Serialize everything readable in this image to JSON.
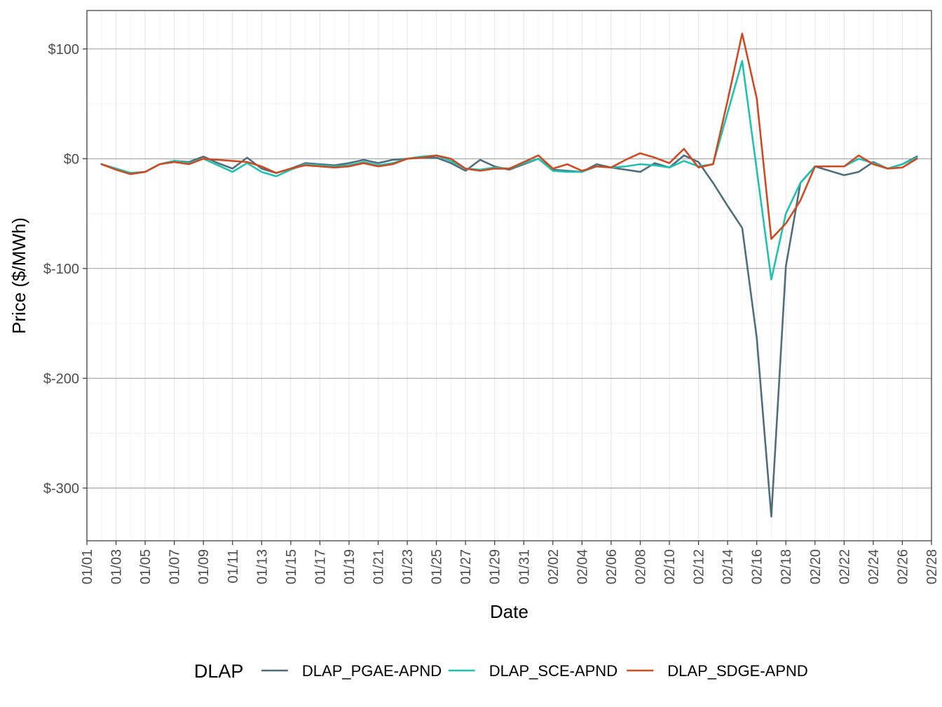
{
  "chart_data": {
    "type": "line",
    "xlabel": "Date",
    "ylabel": "Price ($/MWh)",
    "x_range": [
      "01/01",
      "02/28"
    ],
    "ylim": [
      -348,
      135
    ],
    "grid": true,
    "legend_position": "bottom",
    "legend_title": "DLAP",
    "x_tick_labels": [
      "01/01",
      "01/03",
      "01/05",
      "01/07",
      "01/09",
      "01/11",
      "01/13",
      "01/15",
      "01/17",
      "01/19",
      "01/21",
      "01/23",
      "01/25",
      "01/27",
      "01/29",
      "01/31",
      "02/02",
      "02/04",
      "02/06",
      "02/08",
      "02/10",
      "02/12",
      "02/14",
      "02/16",
      "02/18",
      "02/20",
      "02/22",
      "02/24",
      "02/26",
      "02/28"
    ],
    "y_ticks": [
      100,
      0,
      -100,
      -200,
      -300
    ],
    "y_tick_labels": [
      "$100",
      "$0",
      "$-100",
      "$-200",
      "$-300"
    ],
    "x": [
      "01/02",
      "01/03",
      "01/04",
      "01/05",
      "01/06",
      "01/07",
      "01/08",
      "01/09",
      "01/10",
      "01/11",
      "01/12",
      "01/13",
      "01/14",
      "01/15",
      "01/16",
      "01/17",
      "01/18",
      "01/19",
      "01/20",
      "01/21",
      "01/22",
      "01/23",
      "01/24",
      "01/25",
      "01/26",
      "01/27",
      "01/28",
      "01/29",
      "01/30",
      "01/31",
      "02/01",
      "02/02",
      "02/03",
      "02/04",
      "02/05",
      "02/06",
      "02/07",
      "02/08",
      "02/09",
      "02/10",
      "02/11",
      "02/12",
      "02/13",
      "02/14",
      "02/15",
      "02/16",
      "02/17",
      "02/18",
      "02/19",
      "02/20",
      "02/21",
      "02/22",
      "02/23",
      "02/24",
      "02/25",
      "02/26",
      "02/27"
    ],
    "series": [
      {
        "name": "DLAP_PGAE-APND",
        "color": "#4f6e7c",
        "values": [
          -5,
          -9,
          -13,
          -12,
          -5,
          -2,
          -3,
          2,
          -4,
          -9,
          1,
          -9,
          -13,
          -9,
          -4,
          -5,
          -6,
          -4,
          -1,
          -4,
          -1,
          0,
          1,
          1,
          -4,
          -11,
          -1,
          -7,
          -10,
          -5,
          0,
          -10,
          -11,
          -12,
          -5,
          -8,
          -10,
          -12,
          -4,
          -8,
          3,
          -3,
          -22,
          -43,
          -63,
          -163,
          -326,
          -98,
          -22,
          -7,
          -11,
          -15,
          -12,
          -3,
          -9,
          -5,
          2
        ]
      },
      {
        "name": "DLAP_SCE-APND",
        "color": "#1fc2b0",
        "values": [
          -5,
          -9,
          -13,
          -12,
          -5,
          -2,
          -4,
          0,
          -6,
          -12,
          -4,
          -12,
          -16,
          -10,
          -5,
          -6,
          -7,
          -6,
          -3,
          -6,
          -4,
          0,
          2,
          3,
          -2,
          -9,
          -10,
          -8,
          -9,
          -4,
          0,
          -11,
          -12,
          -12,
          -7,
          -8,
          -7,
          -5,
          -6,
          -8,
          -2,
          -7,
          -5,
          42,
          89,
          -10,
          -110,
          -50,
          -22,
          -7,
          -7,
          -7,
          0,
          -4,
          -9,
          -5,
          1
        ]
      },
      {
        "name": "DLAP_SDGE-APND",
        "color": "#cf4a23",
        "values": [
          -5,
          -10,
          -14,
          -12,
          -5,
          -3,
          -5,
          0,
          -1,
          -2,
          -3,
          -7,
          -13,
          -9,
          -6,
          -7,
          -8,
          -7,
          -4,
          -7,
          -5,
          0,
          1,
          3,
          0,
          -9,
          -11,
          -9,
          -9,
          -3,
          3,
          -9,
          -5,
          -11,
          -7,
          -8,
          -1,
          5,
          1,
          -4,
          9,
          -8,
          -5,
          53,
          114,
          55,
          -73,
          -59,
          -38,
          -7,
          -7,
          -7,
          3,
          -5,
          -9,
          -8,
          0
        ]
      }
    ]
  }
}
